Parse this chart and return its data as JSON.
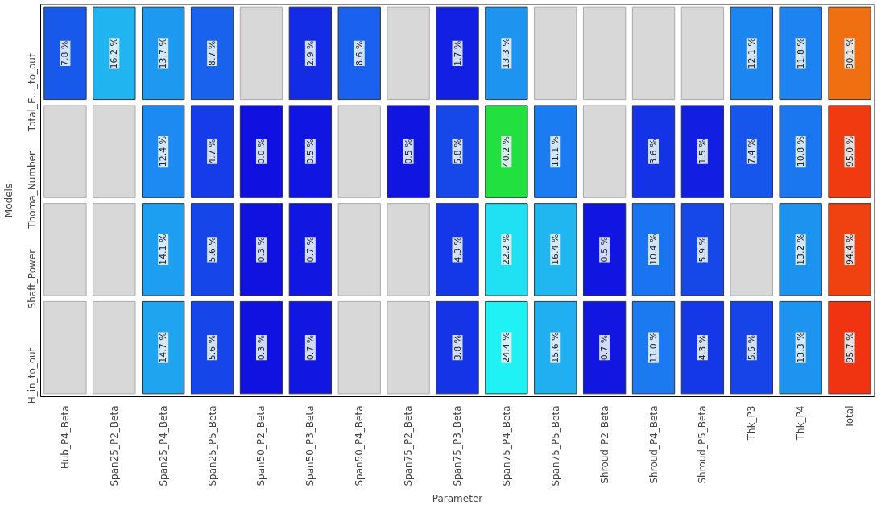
{
  "chart_data": {
    "type": "heatmap",
    "xlabel": "Parameter",
    "ylabel": "Models",
    "categories": [
      "Hub_P4_Beta",
      "Span25_P2_Beta",
      "Span25_P4_Beta",
      "Span25_P5_Beta",
      "Span50_P2_Beta",
      "Span50_P3_Beta",
      "Span50_P4_Beta",
      "Span75_P2_Beta",
      "Span75_P3_Beta",
      "Span75_P4_Beta",
      "Span75_P5_Beta",
      "Shroud_P2_Beta",
      "Shroud_P4_Beta",
      "Shroud_P5_Beta",
      "Thk_P3",
      "Thk_P4",
      "Total"
    ],
    "y_categories": [
      "Total_E..._to_out",
      "Thoma_Number",
      "Shaft_Power",
      "H_in_to_out"
    ],
    "cells": [
      [
        7.8,
        16.2,
        13.7,
        8.7,
        null,
        2.9,
        8.6,
        null,
        1.7,
        13.3,
        null,
        null,
        null,
        null,
        12.1,
        11.8,
        90.1
      ],
      [
        null,
        null,
        12.4,
        4.7,
        0.0,
        0.5,
        null,
        0.5,
        5.8,
        40.2,
        11.1,
        null,
        3.6,
        1.5,
        7.4,
        10.8,
        95.0
      ],
      [
        null,
        null,
        14.1,
        5.6,
        0.3,
        0.7,
        null,
        null,
        4.3,
        22.2,
        16.4,
        0.5,
        10.4,
        5.9,
        null,
        13.2,
        94.4
      ],
      [
        null,
        null,
        14.7,
        5.6,
        0.3,
        0.7,
        null,
        null,
        3.8,
        24.4,
        15.6,
        0.7,
        11.0,
        4.3,
        5.5,
        13.3,
        95.7
      ]
    ],
    "cell_labels": [
      [
        "7.8 %",
        "16.2 %",
        "13.7 %",
        "8.7 %",
        null,
        "2.9 %",
        "8.6 %",
        null,
        "1.7 %",
        "13.3 %",
        null,
        null,
        null,
        null,
        "12.1 %",
        "11.8 %",
        "90.1 %"
      ],
      [
        null,
        null,
        "12.4 %",
        "4.7 %",
        "0.0 %",
        "0.5 %",
        null,
        "0.5 %",
        "5.8 %",
        "40.2 %",
        "11.1 %",
        null,
        "3.6 %",
        "1.5 %",
        "7.4 %",
        "10.8 %",
        "95.0 %"
      ],
      [
        null,
        null,
        "14.1 %",
        "5.6 %",
        "0.3 %",
        "0.7 %",
        null,
        null,
        "4.3 %",
        "22.2 %",
        "16.4 %",
        "0.5 %",
        "10.4 %",
        "5.9 %",
        null,
        "13.2 %",
        "94.4 %"
      ],
      [
        null,
        null,
        "14.7 %",
        "5.6 %",
        "0.3 %",
        "0.7 %",
        null,
        null,
        "3.8 %",
        "24.4 %",
        "15.6 %",
        "0.7 %",
        "11.0 %",
        "4.3 %",
        "5.5 %",
        "13.3 %",
        "95.7 %"
      ]
    ],
    "grid": false
  }
}
